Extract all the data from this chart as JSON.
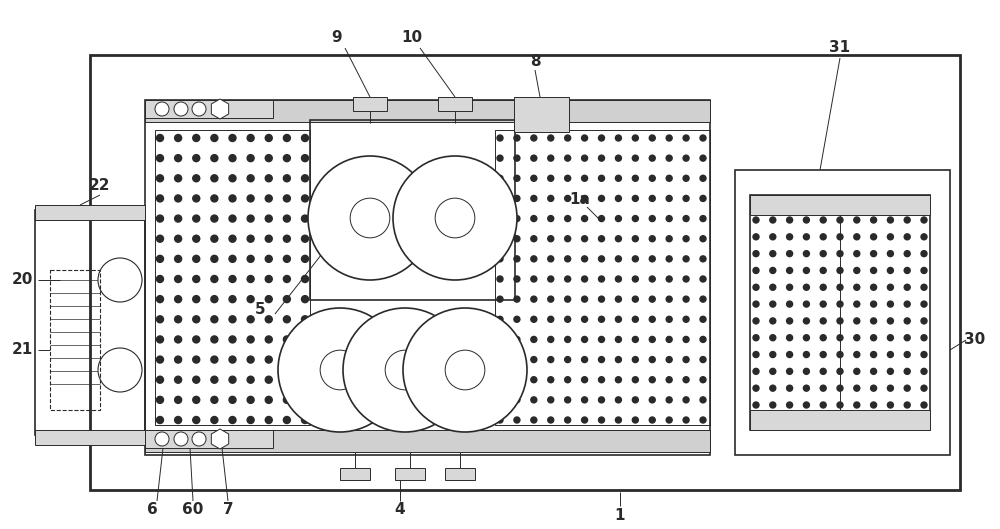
{
  "bg_color": "#ffffff",
  "line_color": "#2a2a2a",
  "figsize": [
    10.0,
    5.29
  ],
  "dpi": 100,
  "labels_fs": 11,
  "label_fw": "bold"
}
